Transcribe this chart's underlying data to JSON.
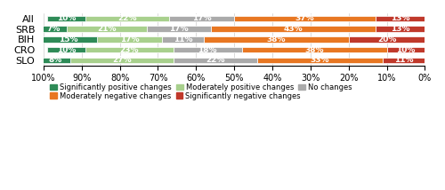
{
  "categories": [
    "All",
    "SRB",
    "BIH",
    "CRO",
    "SLO"
  ],
  "series_order": [
    "Significantly negative changes",
    "Moderately negative changes",
    "No changes",
    "Moderately positive changes",
    "Significantly positive changes"
  ],
  "series": {
    "Significantly negative changes": [
      13,
      13,
      20,
      10,
      11
    ],
    "Moderately negative changes": [
      37,
      43,
      38,
      38,
      33
    ],
    "No changes": [
      17,
      17,
      11,
      18,
      22
    ],
    "Moderately positive changes": [
      22,
      21,
      17,
      23,
      27
    ],
    "Significantly positive changes": [
      10,
      7,
      15,
      10,
      8
    ]
  },
  "colors": {
    "Significantly negative changes": "#c0392b",
    "Moderately negative changes": "#e87722",
    "No changes": "#aaaaaa",
    "Moderately positive changes": "#a8d08d",
    "Significantly positive changes": "#2e8b57"
  },
  "bar_height": 0.55,
  "legend_row1": [
    "Significantly positive changes",
    "Moderately positive changes",
    "No changes"
  ],
  "legend_row2": [
    "Moderately negative changes",
    "Significantly negative changes"
  ]
}
